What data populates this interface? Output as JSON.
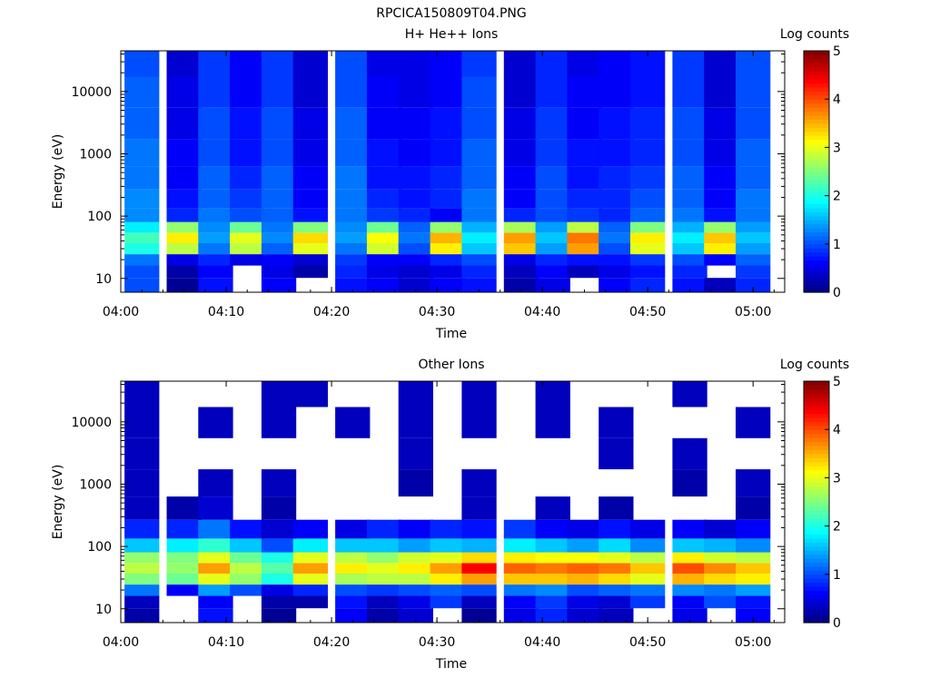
{
  "figure_title": "RPCICA150809T04.PNG",
  "colorscale": [
    "#000080",
    "#0000ff",
    "#0080ff",
    "#00ffff",
    "#80ff80",
    "#ffff00",
    "#ff8000",
    "#ff0000",
    "#800000"
  ],
  "chart_data": [
    {
      "type": "heatmap",
      "title": "H+ He++ Ions",
      "xlabel": "Time",
      "ylabel": "Energy (eV)",
      "x_range": [
        "04:00",
        "05:03"
      ],
      "x_ticks": [
        "04:00",
        "04:10",
        "04:20",
        "04:30",
        "04:40",
        "04:50",
        "05:00"
      ],
      "y_scale": "log",
      "y_range": [
        6,
        45000
      ],
      "y_ticks": [
        "10",
        "100",
        "1000",
        "10000"
      ],
      "colorbar": {
        "label": "Log counts",
        "min": 0,
        "max": 5,
        "ticks": [
          "0",
          "1",
          "2",
          "3",
          "4",
          "5"
        ]
      },
      "time_columns": [
        "04:02",
        "04:06",
        "04:09",
        "04:12",
        "04:15",
        "04:18",
        "04:22",
        "04:25",
        "04:28",
        "04:31",
        "04:34",
        "04:38",
        "04:41",
        "04:44",
        "04:47",
        "04:50",
        "04:54",
        "04:57",
        "05:00"
      ],
      "energy_bands_eV": [
        8,
        13,
        20,
        30,
        45,
        65,
        100,
        180,
        400,
        1000,
        3000,
        10000,
        30000
      ],
      "values": [
        [
          1.0,
          0.1,
          0.7,
          null,
          0.6,
          null,
          0.7,
          0.6,
          0.4,
          0.6,
          0.7,
          0.2,
          0.5,
          null,
          0.6,
          0.8,
          0.7,
          0.3,
          0.8
        ],
        [
          1.0,
          0.2,
          0.6,
          null,
          0.5,
          0.2,
          0.8,
          0.5,
          0.4,
          0.5,
          0.8,
          0.3,
          0.6,
          0.3,
          0.5,
          0.7,
          0.8,
          null,
          0.9
        ],
        [
          1.2,
          0.5,
          0.8,
          0.5,
          0.6,
          0.4,
          0.9,
          0.6,
          0.6,
          0.8,
          1.0,
          0.5,
          0.8,
          0.7,
          0.7,
          0.9,
          1.0,
          0.6,
          1.1
        ],
        [
          2.0,
          2.8,
          1.2,
          2.8,
          1.1,
          3.0,
          1.2,
          2.9,
          1.0,
          3.2,
          1.6,
          3.4,
          1.4,
          3.6,
          1.0,
          3.0,
          1.6,
          3.2,
          1.4
        ],
        [
          2.2,
          3.2,
          1.4,
          3.0,
          1.3,
          3.3,
          1.4,
          3.1,
          1.2,
          3.5,
          1.8,
          3.6,
          1.6,
          3.8,
          1.2,
          3.2,
          1.8,
          3.4,
          1.6
        ],
        [
          1.8,
          2.6,
          1.3,
          2.4,
          1.2,
          2.5,
          1.3,
          2.4,
          1.1,
          2.6,
          1.5,
          2.7,
          1.4,
          2.8,
          1.1,
          2.5,
          1.5,
          2.6,
          1.4
        ],
        [
          1.3,
          0.8,
          1.2,
          1.0,
          1.1,
          0.7,
          1.2,
          0.9,
          0.8,
          0.6,
          1.2,
          0.8,
          1.0,
          0.9,
          0.8,
          1.1,
          1.2,
          0.7,
          1.2
        ],
        [
          1.3,
          0.7,
          1.1,
          0.9,
          1.1,
          0.6,
          1.2,
          0.8,
          0.7,
          0.8,
          1.2,
          0.6,
          1.0,
          0.8,
          0.8,
          1.0,
          1.1,
          0.6,
          1.2
        ],
        [
          1.2,
          0.6,
          1.1,
          0.8,
          1.1,
          0.6,
          1.2,
          0.7,
          0.7,
          0.8,
          1.1,
          0.6,
          1.0,
          0.7,
          0.8,
          0.9,
          1.1,
          0.6,
          1.1
        ],
        [
          1.2,
          0.6,
          1.0,
          0.7,
          1.0,
          0.5,
          1.1,
          0.7,
          0.6,
          0.7,
          1.1,
          0.5,
          0.9,
          0.7,
          0.7,
          0.8,
          1.0,
          0.5,
          1.1
        ],
        [
          1.1,
          0.5,
          1.0,
          0.7,
          1.0,
          0.5,
          1.1,
          0.6,
          0.6,
          0.7,
          1.0,
          0.5,
          0.9,
          0.6,
          0.7,
          0.8,
          1.0,
          0.5,
          1.0
        ],
        [
          1.1,
          0.5,
          0.9,
          0.6,
          0.9,
          0.4,
          1.0,
          0.6,
          0.5,
          0.6,
          1.0,
          0.4,
          0.8,
          0.6,
          0.6,
          0.7,
          0.9,
          0.4,
          1.0
        ],
        [
          1.0,
          0.4,
          0.9,
          0.6,
          0.9,
          0.4,
          1.0,
          0.5,
          0.5,
          0.6,
          0.9,
          0.4,
          0.8,
          0.5,
          0.6,
          0.7,
          0.9,
          0.4,
          1.0
        ]
      ]
    },
    {
      "type": "heatmap",
      "title": "Other Ions",
      "xlabel": "Time",
      "ylabel": "Energy (eV)",
      "x_range": [
        "04:00",
        "05:03"
      ],
      "x_ticks": [
        "04:00",
        "04:10",
        "04:20",
        "04:30",
        "04:40",
        "04:50",
        "05:00"
      ],
      "y_scale": "log",
      "y_range": [
        6,
        45000
      ],
      "y_ticks": [
        "10",
        "100",
        "1000",
        "10000"
      ],
      "colorbar": {
        "label": "Log counts",
        "min": 0,
        "max": 5,
        "ticks": [
          "0",
          "1",
          "2",
          "3",
          "4",
          "5"
        ]
      },
      "time_columns": [
        "04:02",
        "04:06",
        "04:09",
        "04:12",
        "04:15",
        "04:18",
        "04:22",
        "04:25",
        "04:28",
        "04:31",
        "04:34",
        "04:38",
        "04:41",
        "04:44",
        "04:47",
        "04:50",
        "04:54",
        "04:57",
        "05:00"
      ],
      "energy_bands_eV": [
        8,
        13,
        20,
        30,
        45,
        65,
        100,
        180,
        400,
        1000,
        3000,
        10000,
        30000
      ],
      "values": [
        [
          0.2,
          null,
          0.7,
          null,
          0.1,
          null,
          0.6,
          0.2,
          0.4,
          null,
          0.1,
          0.5,
          0.8,
          0.4,
          0.3,
          null,
          0.5,
          null,
          0.6
        ],
        [
          0.3,
          null,
          0.6,
          null,
          0.2,
          0.2,
          0.7,
          0.3,
          0.5,
          0.9,
          0.3,
          0.6,
          0.9,
          0.5,
          0.4,
          0.9,
          0.6,
          1.0,
          0.7
        ],
        [
          1.2,
          0.6,
          1.4,
          1.0,
          0.5,
          0.8,
          1.0,
          0.9,
          1.0,
          1.1,
          1.0,
          1.2,
          1.3,
          1.0,
          1.1,
          1.2,
          1.3,
          1.2,
          1.4
        ],
        [
          2.5,
          2.4,
          3.0,
          2.6,
          2.0,
          3.0,
          2.7,
          2.8,
          2.8,
          3.2,
          3.6,
          3.4,
          3.4,
          3.5,
          3.3,
          3.0,
          3.5,
          3.3,
          3.2
        ],
        [
          2.8,
          2.6,
          3.6,
          2.8,
          2.3,
          3.6,
          3.2,
          3.0,
          3.2,
          3.6,
          4.4,
          3.9,
          3.8,
          3.9,
          3.8,
          3.4,
          4.0,
          3.7,
          3.4
        ],
        [
          2.6,
          2.5,
          3.0,
          2.4,
          2.0,
          3.0,
          2.8,
          2.6,
          2.9,
          3.0,
          3.3,
          3.2,
          3.1,
          3.1,
          3.0,
          2.8,
          3.2,
          2.9,
          2.8
        ],
        [
          1.6,
          1.8,
          2.1,
          1.6,
          1.0,
          1.8,
          1.6,
          1.6,
          1.4,
          1.6,
          1.5,
          1.8,
          1.6,
          1.4,
          1.7,
          1.3,
          1.6,
          1.5,
          1.3
        ],
        [
          0.8,
          0.8,
          1.2,
          0.7,
          0.4,
          0.6,
          0.5,
          0.8,
          0.6,
          0.8,
          0.7,
          0.9,
          0.6,
          0.5,
          0.7,
          0.5,
          0.6,
          0.4,
          0.6
        ],
        [
          0.3,
          0.2,
          0.4,
          null,
          0.2,
          null,
          null,
          null,
          null,
          null,
          0.3,
          null,
          0.3,
          null,
          0.2,
          null,
          null,
          null,
          0.2
        ],
        [
          0.3,
          null,
          0.3,
          null,
          0.3,
          null,
          null,
          null,
          0.2,
          null,
          0.3,
          null,
          null,
          null,
          null,
          null,
          0.2,
          null,
          0.3
        ],
        [
          0.3,
          null,
          null,
          null,
          null,
          null,
          null,
          null,
          0.3,
          null,
          null,
          null,
          null,
          null,
          0.3,
          null,
          0.3,
          null,
          null
        ],
        [
          0.3,
          null,
          0.3,
          null,
          0.3,
          null,
          0.3,
          null,
          0.3,
          null,
          0.3,
          null,
          0.3,
          null,
          0.3,
          null,
          null,
          null,
          0.3
        ],
        [
          0.3,
          null,
          null,
          null,
          0.3,
          0.3,
          null,
          null,
          0.3,
          null,
          0.3,
          null,
          0.3,
          null,
          null,
          null,
          0.3,
          null,
          null
        ]
      ]
    }
  ]
}
